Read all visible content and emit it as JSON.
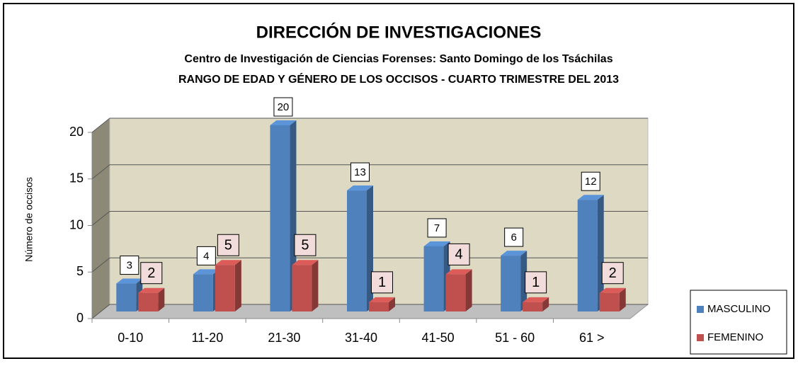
{
  "chart_data": {
    "type": "bar3d",
    "title": "DIRECCIÓN DE INVESTIGACIONES",
    "subtitle": [
      "Centro de Investigación de Ciencias Forenses: Santo Domingo de los Tsáchilas",
      "RANGO DE EDAD Y GÉNERO DE LOS OCCISOS - CUARTO TRIMESTRE DEL 2013"
    ],
    "y_label": "Número de occisos",
    "categories": [
      "0-10",
      "11-20",
      "21-30",
      "31-40",
      "41-50",
      "51 - 60",
      "61 >"
    ],
    "series": [
      {
        "name": "MASCULINO",
        "color": "#4f81bd",
        "values": [
          3,
          4,
          20,
          13,
          7,
          6,
          12
        ]
      },
      {
        "name": "FEMENINO",
        "color": "#c0504d",
        "values": [
          2,
          5,
          5,
          1,
          4,
          1,
          2
        ]
      }
    ],
    "ylim": [
      0,
      20
    ],
    "yticks": [
      0,
      5,
      10,
      15,
      20
    ],
    "grid": true,
    "legend": "right"
  }
}
